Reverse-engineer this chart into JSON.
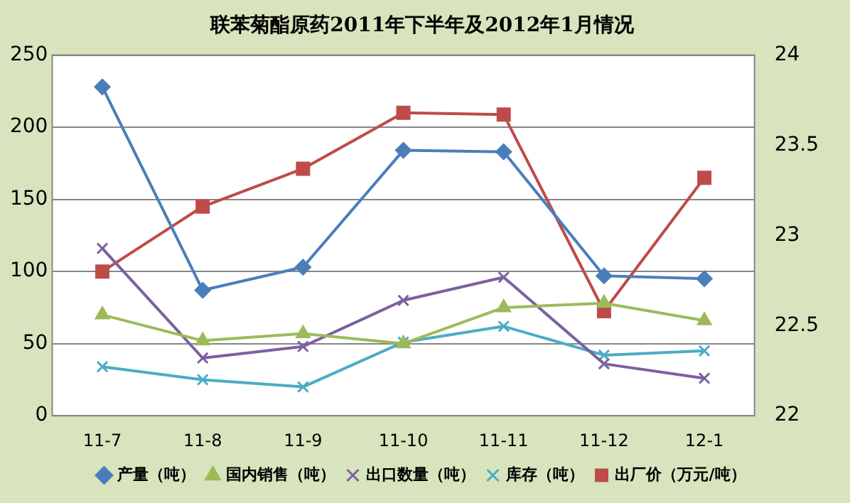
{
  "chart_data": {
    "type": "line",
    "title": "联苯菊酯原药2011年下半年及2012年1月情况",
    "categories": [
      "11-7",
      "11-8",
      "11-9",
      "11-10",
      "11-11",
      "11-12",
      "12-1"
    ],
    "series": [
      {
        "name": "产量（吨）",
        "color": "#4a7ebb",
        "marker": "diamond",
        "values": [
          228,
          87,
          103,
          184,
          183,
          97,
          95
        ]
      },
      {
        "name": "国内销售（吨）",
        "color": "#9bbb59",
        "marker": "triangle",
        "values": [
          70,
          52,
          57,
          50,
          75,
          78,
          66
        ]
      },
      {
        "name": "出口数量（吨）",
        "color": "#7d60a0",
        "marker": "cross",
        "values": [
          116,
          40,
          48,
          80,
          96,
          36,
          26
        ]
      },
      {
        "name": "库存（吨）",
        "color": "#4bacc6",
        "marker": "cross",
        "values": [
          34,
          25,
          20,
          51,
          62,
          42,
          45
        ]
      },
      {
        "name": "出厂价（万元/吨）",
        "color": "#be4b48",
        "marker": "square",
        "axis": "y2",
        "values": [
          22.8,
          23.16,
          23.37,
          23.68,
          23.67,
          22.58,
          23.32
        ]
      }
    ],
    "ylim": [
      0,
      250
    ],
    "yticks": [
      0,
      50,
      100,
      150,
      200,
      250
    ],
    "y2lim": [
      22,
      24
    ],
    "y2ticks": [
      22,
      22.5,
      23,
      23.5,
      24
    ],
    "grid": "y",
    "legend": "bottom",
    "line_style": "solid"
  }
}
